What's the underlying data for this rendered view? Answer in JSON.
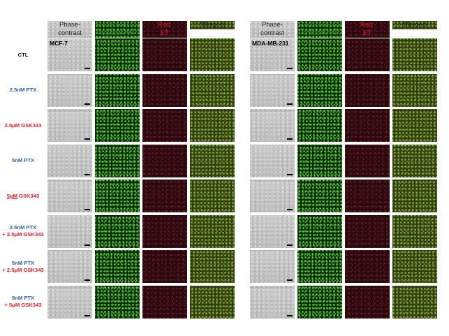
{
  "column_headers": {
    "phase": [
      "Phase-",
      "contrast"
    ],
    "green": [
      "Green",
      "Calcein AM"
    ],
    "red": [
      "Red:",
      "ET"
    ],
    "merged": [
      "Merged"
    ]
  },
  "cell_lines": [
    "MCF-7",
    "MDA-MB-231"
  ],
  "rows": [
    {
      "lines": [
        [
          {
            "t": "CTL",
            "c": "black"
          }
        ]
      ]
    },
    {
      "lines": [
        [
          {
            "t": "2.5nM PTX",
            "c": "blue"
          }
        ]
      ]
    },
    {
      "lines": [
        [
          {
            "t": "2.5μM GSK343",
            "c": "red"
          }
        ]
      ]
    },
    {
      "lines": [
        [
          {
            "t": "5nM PTX",
            "c": "blue"
          }
        ]
      ]
    },
    {
      "lines": [
        [
          {
            "t": "5μM",
            "c": "red",
            "u": true
          },
          {
            "t": " GSK343",
            "c": "red"
          }
        ]
      ]
    },
    {
      "lines": [
        [
          {
            "t": "2.5nM PTX",
            "c": "blue"
          }
        ],
        [
          {
            "t": "+ 2.5μM GSK343",
            "c": "red"
          }
        ]
      ]
    },
    {
      "lines": [
        [
          {
            "t": "5nM PTX",
            "c": "blue"
          }
        ],
        [
          {
            "t": "+ 2.5μM GSK343",
            "c": "red"
          }
        ]
      ]
    },
    {
      "lines": [
        [
          {
            "t": "5nM PTX",
            "c": "blue"
          }
        ],
        [
          {
            "t": "+ 5μM GSK343",
            "c": "red"
          }
        ]
      ]
    }
  ]
}
